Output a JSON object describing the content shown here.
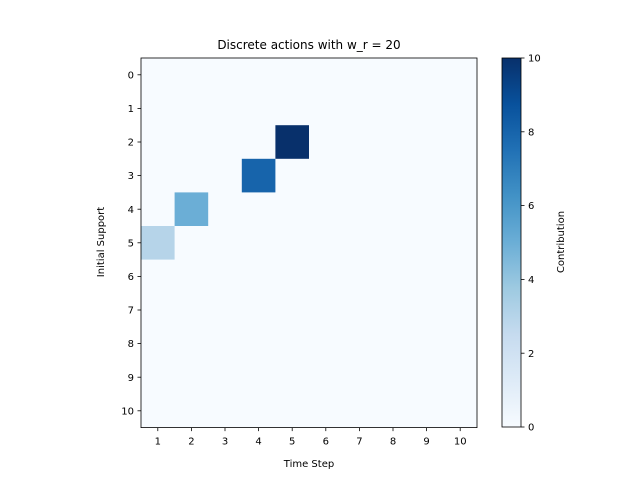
{
  "chart_data": {
    "type": "heatmap",
    "title": "Discrete actions with w_r = 20",
    "xlabel": "Time Step",
    "ylabel": "Initial Support",
    "colorbar_label": "Contribution",
    "x_categories": [
      "1",
      "2",
      "3",
      "4",
      "5",
      "6",
      "7",
      "8",
      "9",
      "10"
    ],
    "y_categories": [
      "0",
      "1",
      "2",
      "3",
      "4",
      "5",
      "6",
      "7",
      "8",
      "9",
      "10"
    ],
    "colormap": "Blues",
    "vmin": 0,
    "vmax": 10,
    "colorbar_ticks": [
      "0",
      "2",
      "4",
      "6",
      "8",
      "10"
    ],
    "cells": [
      {
        "x": "5",
        "y": "2",
        "value": 10
      },
      {
        "x": "4",
        "y": "3",
        "value": 8
      },
      {
        "x": "2",
        "y": "4",
        "value": 5
      },
      {
        "x": "1",
        "y": "5",
        "value": 3
      }
    ],
    "default_value": 0,
    "grid": false
  }
}
